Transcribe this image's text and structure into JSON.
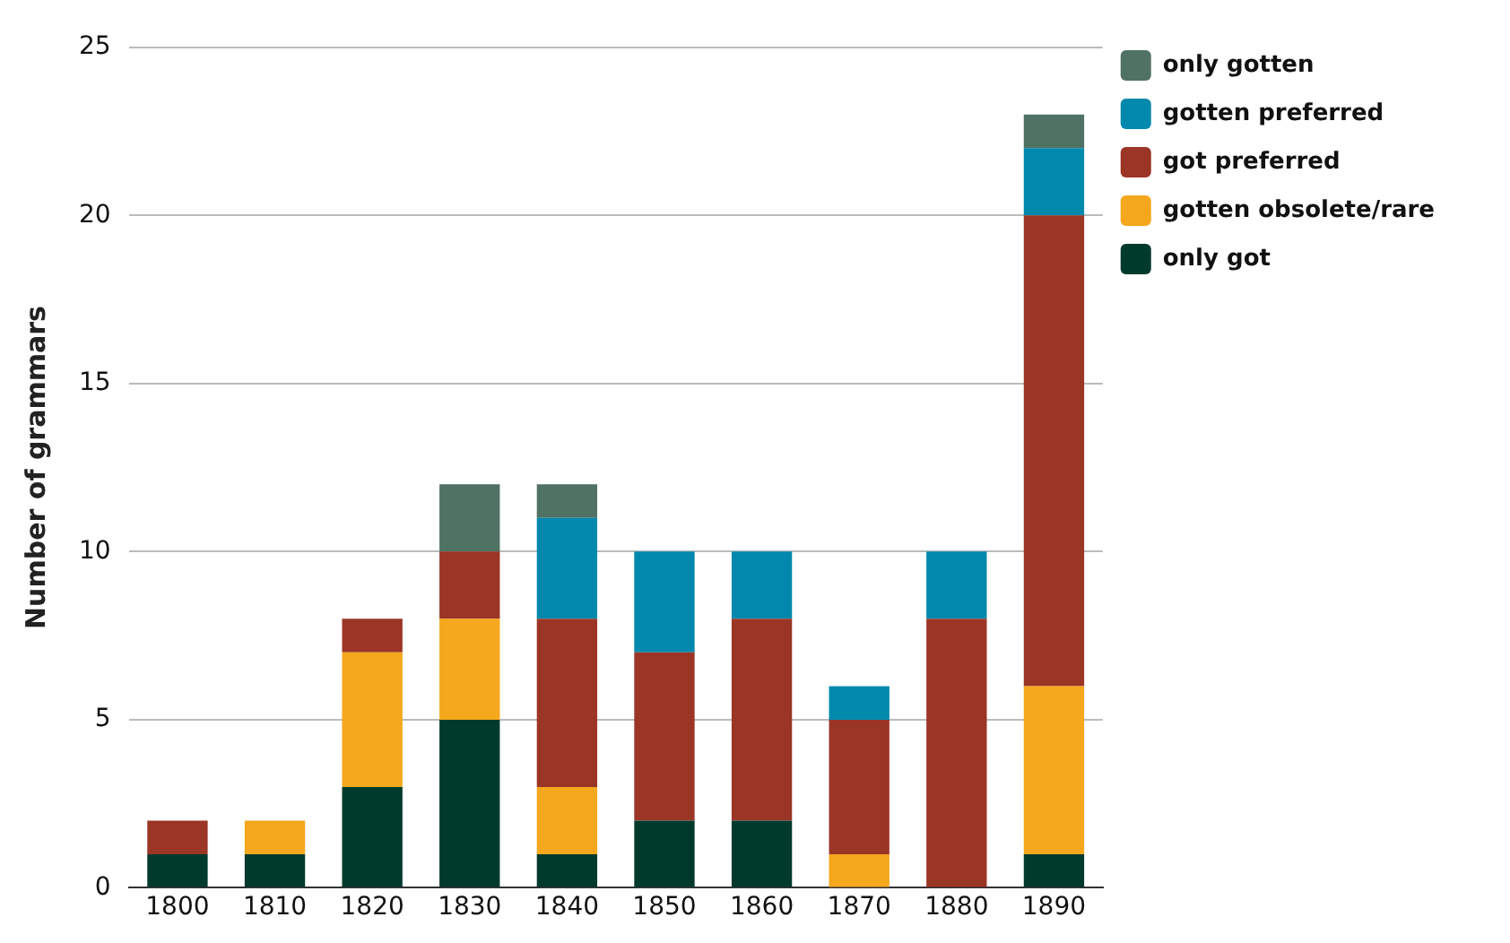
{
  "chart_data": {
    "type": "bar",
    "ylabel": "Number of grammars",
    "categories": [
      "1800",
      "1810",
      "1820",
      "1830",
      "1840",
      "1850",
      "1860",
      "1870",
      "1880",
      "1890"
    ],
    "stacked": true,
    "ylim": [
      0,
      25
    ],
    "yticks": [
      0,
      5,
      10,
      15,
      20,
      25
    ],
    "grid": "y",
    "legend": "top right",
    "series": [
      {
        "name": "only got",
        "color": "#003a2c",
        "values": [
          1,
          1,
          3,
          5,
          1,
          2,
          2,
          0,
          0,
          1
        ]
      },
      {
        "name": "gotten obsolete/rare",
        "color": "#f5a71d",
        "values": [
          0,
          1,
          4,
          3,
          2,
          0,
          0,
          1,
          0,
          5
        ]
      },
      {
        "name": "got preferred",
        "color": "#9b3526",
        "values": [
          1,
          0,
          1,
          2,
          5,
          5,
          6,
          4,
          8,
          14
        ]
      },
      {
        "name": "gotten preferred",
        "color": "#0089ad",
        "values": [
          0,
          0,
          0,
          0,
          3,
          3,
          2,
          1,
          2,
          2
        ]
      },
      {
        "name": "only gotten",
        "color": "#507264",
        "values": [
          0,
          0,
          0,
          2,
          1,
          0,
          0,
          0,
          0,
          1
        ]
      }
    ]
  }
}
